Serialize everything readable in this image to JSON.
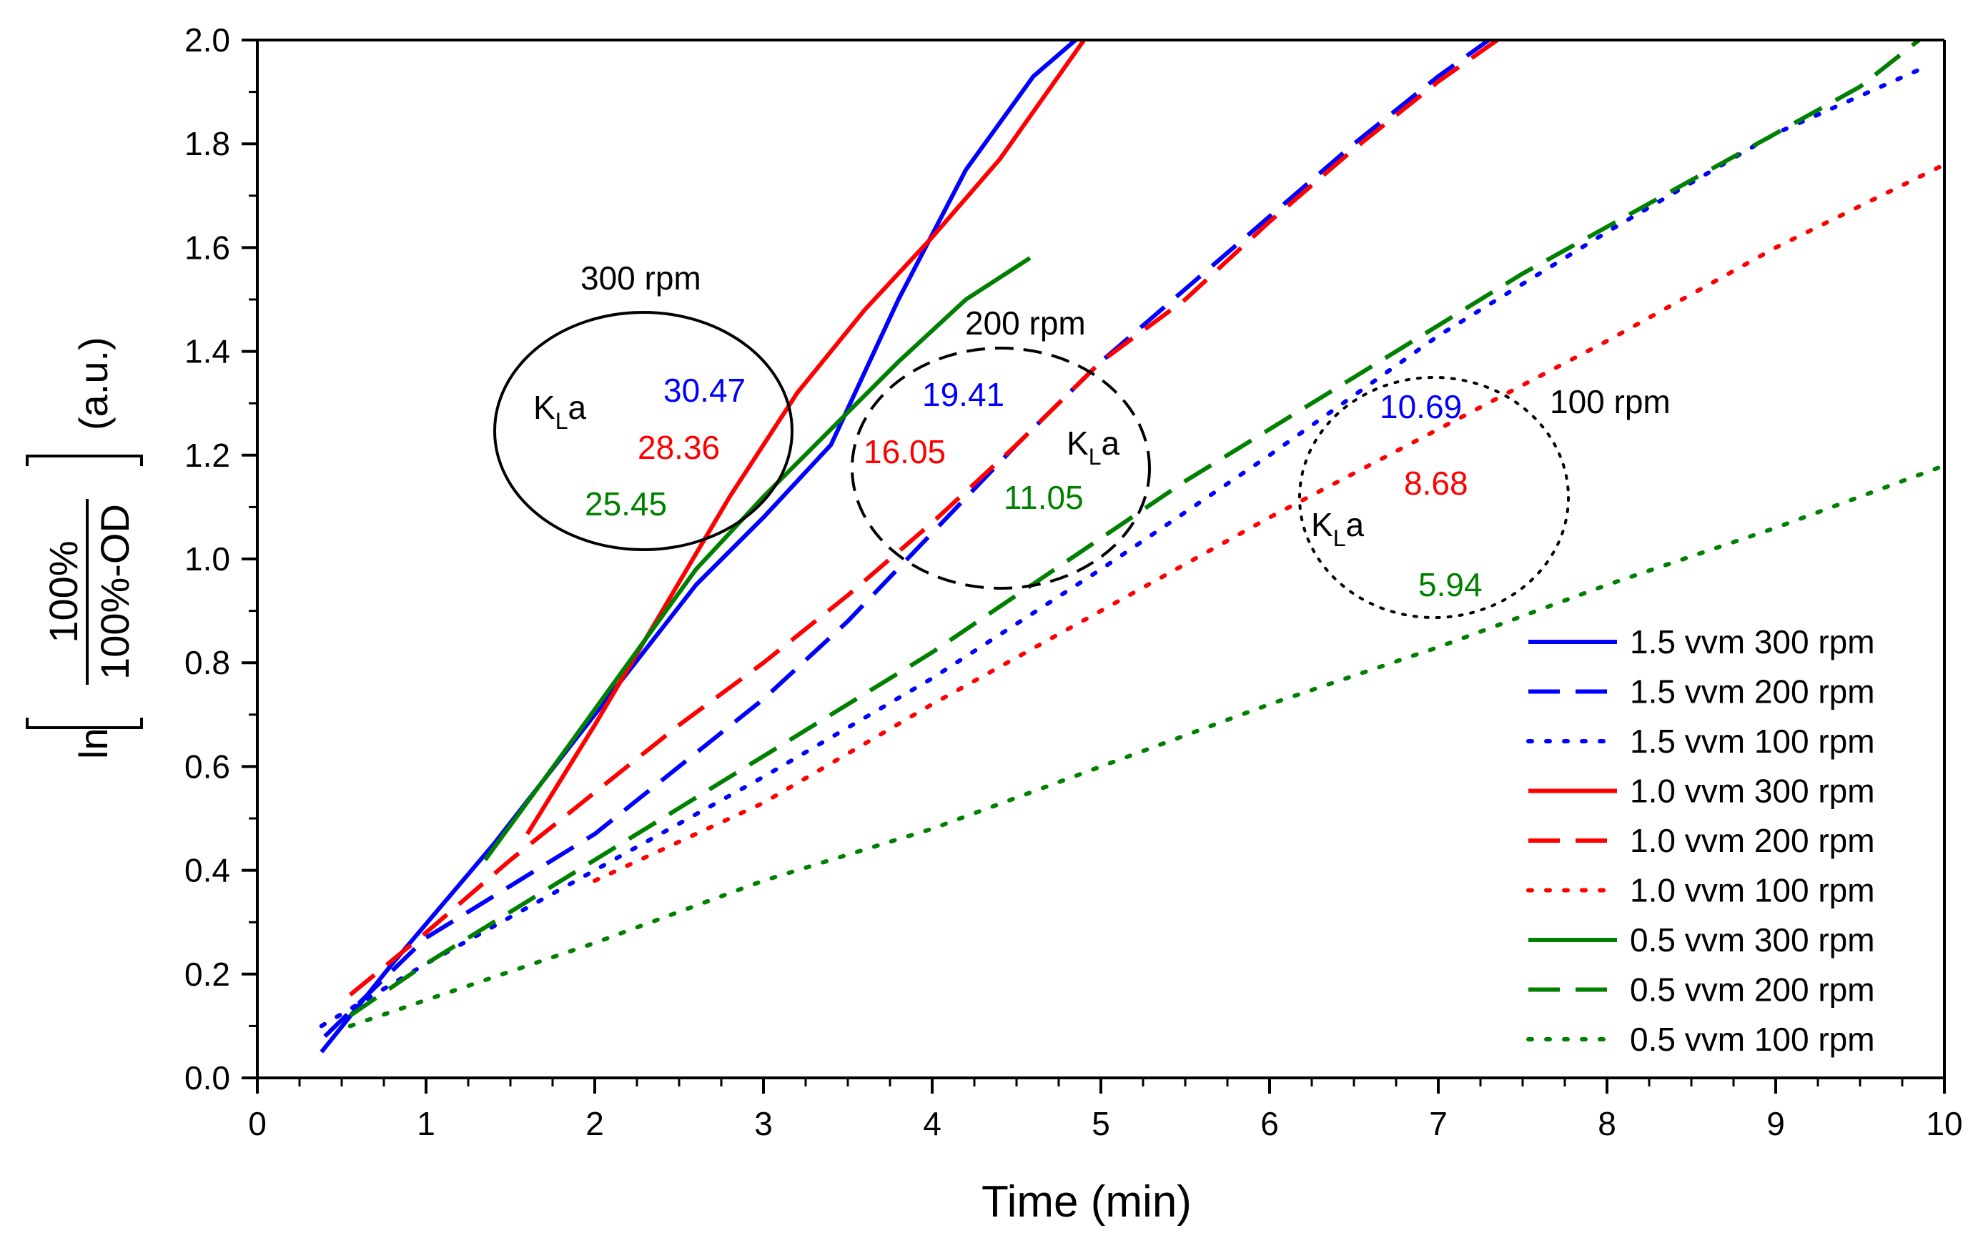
{
  "chart_data": {
    "type": "line",
    "title": "",
    "xlabel": "Time (min)",
    "ylabel": {
      "prefix": "ln",
      "numerator": "100%",
      "denominator": "100%-OD",
      "unit": "(a.u.)"
    },
    "xlim": [
      0,
      10
    ],
    "ylim": [
      0,
      2.0
    ],
    "xticks": [
      "0",
      "1",
      "2",
      "3",
      "4",
      "5",
      "6",
      "7",
      "8",
      "9",
      "10"
    ],
    "yticks": [
      "0.0",
      "0.2",
      "0.4",
      "0.6",
      "0.8",
      "1.0",
      "1.2",
      "1.4",
      "1.6",
      "1.8",
      "2.0"
    ],
    "grid": false,
    "legend_position": "bottom-right",
    "series": [
      {
        "name": "1.5 vvm 300 rpm",
        "color": "#0000ff",
        "style": "solid",
        "x": [
          0.38,
          0.8,
          1.4,
          2.0,
          2.6,
          3.0,
          3.4,
          3.8,
          4.2,
          4.6,
          4.85
        ],
        "y": [
          0.05,
          0.22,
          0.45,
          0.7,
          0.95,
          1.08,
          1.22,
          1.5,
          1.75,
          1.93,
          2.0
        ]
      },
      {
        "name": "1.5 vvm 200 rpm",
        "color": "#0000ff",
        "style": "dashed",
        "x": [
          0.4,
          1.0,
          1.5,
          2.0,
          2.5,
          3.0,
          3.5,
          4.0,
          4.5,
          5.0,
          5.5,
          6.0,
          6.5,
          7.0,
          7.3
        ],
        "y": [
          0.08,
          0.27,
          0.37,
          0.47,
          0.6,
          0.73,
          0.88,
          1.05,
          1.22,
          1.38,
          1.52,
          1.66,
          1.8,
          1.93,
          2.0
        ]
      },
      {
        "name": "1.5 vvm 100 rpm",
        "color": "#0000ff",
        "style": "dotted",
        "x": [
          0.38,
          1.0,
          2.0,
          3.0,
          4.0,
          5.0,
          6.0,
          7.0,
          8.0,
          9.0,
          9.9
        ],
        "y": [
          0.1,
          0.22,
          0.4,
          0.58,
          0.77,
          0.98,
          1.2,
          1.43,
          1.63,
          1.82,
          1.95
        ]
      },
      {
        "name": "1.0 vvm 300 rpm",
        "color": "#ff0000",
        "style": "solid",
        "x": [
          1.6,
          2.0,
          2.4,
          2.8,
          3.2,
          3.6,
          4.0,
          4.4,
          4.9
        ],
        "y": [
          0.47,
          0.68,
          0.9,
          1.12,
          1.32,
          1.48,
          1.62,
          1.77,
          2.0
        ]
      },
      {
        "name": "1.0 vvm 200 rpm",
        "color": "#ff0000",
        "style": "dashed",
        "x": [
          0.55,
          1.0,
          1.5,
          2.0,
          2.5,
          3.0,
          3.5,
          4.0,
          4.5,
          5.0,
          5.5,
          6.0,
          6.5,
          7.0,
          7.35
        ],
        "y": [
          0.16,
          0.28,
          0.42,
          0.55,
          0.68,
          0.8,
          0.93,
          1.07,
          1.22,
          1.38,
          1.5,
          1.65,
          1.79,
          1.92,
          2.0
        ]
      },
      {
        "name": "1.0 vvm 100 rpm",
        "color": "#ff0000",
        "style": "dotted",
        "x": [
          2.0,
          3.0,
          4.0,
          5.0,
          6.0,
          7.0,
          8.0,
          9.0,
          10.0
        ],
        "y": [
          0.38,
          0.53,
          0.72,
          0.9,
          1.08,
          1.25,
          1.42,
          1.6,
          1.76
        ]
      },
      {
        "name": "0.5 vvm 300 rpm",
        "color": "#008000",
        "style": "solid",
        "x": [
          1.35,
          1.8,
          2.2,
          2.6,
          3.0,
          3.4,
          3.8,
          4.2,
          4.58
        ],
        "y": [
          0.42,
          0.62,
          0.8,
          0.98,
          1.12,
          1.25,
          1.38,
          1.5,
          1.58
        ]
      },
      {
        "name": "0.5 vvm 200 rpm",
        "color": "#008000",
        "style": "dashed",
        "x": [
          0.55,
          1.0,
          1.5,
          2.0,
          2.5,
          3.0,
          3.5,
          4.0,
          4.5,
          5.0,
          5.5,
          6.0,
          6.5,
          7.0,
          7.5,
          8.0,
          8.5,
          9.0,
          9.5,
          9.85
        ],
        "y": [
          0.12,
          0.22,
          0.32,
          0.42,
          0.52,
          0.62,
          0.72,
          0.82,
          0.93,
          1.04,
          1.15,
          1.25,
          1.35,
          1.45,
          1.55,
          1.64,
          1.73,
          1.82,
          1.91,
          2.0
        ]
      },
      {
        "name": "0.5 vvm 100 rpm",
        "color": "#008000",
        "style": "dotted",
        "x": [
          0.55,
          1.0,
          2.0,
          3.0,
          4.0,
          5.0,
          6.0,
          7.0,
          8.0,
          9.0,
          10.0
        ],
        "y": [
          0.1,
          0.15,
          0.26,
          0.38,
          0.48,
          0.6,
          0.72,
          0.83,
          0.95,
          1.06,
          1.18
        ]
      }
    ],
    "annotations": {
      "groups": [
        {
          "title": "300 rpm",
          "kla_label": "K",
          "kla_sub": "L",
          "kla_tail": "a",
          "ring": "solid",
          "values": [
            {
              "text": "30.47",
              "color": "#0000ff"
            },
            {
              "text": "28.36",
              "color": "#ff0000"
            },
            {
              "text": "25.45",
              "color": "#008000"
            }
          ]
        },
        {
          "title": "200 rpm",
          "kla_label": "K",
          "kla_sub": "L",
          "kla_tail": "a",
          "ring": "dashed",
          "values": [
            {
              "text": "19.41",
              "color": "#0000ff"
            },
            {
              "text": "16.05",
              "color": "#ff0000"
            },
            {
              "text": "11.05",
              "color": "#008000"
            }
          ]
        },
        {
          "title": "100 rpm",
          "kla_label": "K",
          "kla_sub": "L",
          "kla_tail": "a",
          "ring": "dotted",
          "values": [
            {
              "text": "10.69",
              "color": "#0000ff"
            },
            {
              "text": "8.68",
              "color": "#ff0000"
            },
            {
              "text": "5.94",
              "color": "#008000"
            }
          ]
        }
      ]
    }
  }
}
